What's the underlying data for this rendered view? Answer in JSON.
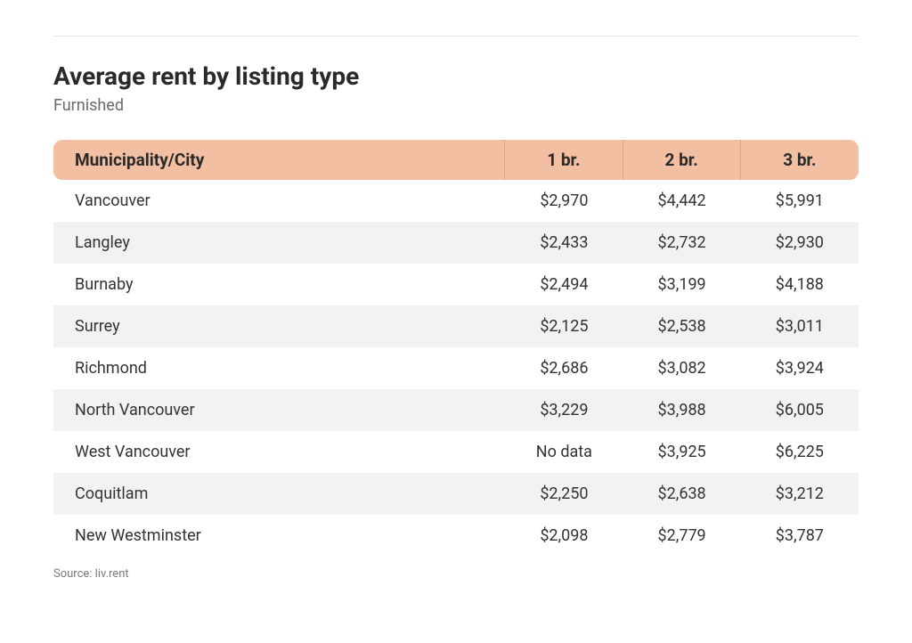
{
  "title": "Average rent by listing type",
  "subtitle": "Furnished",
  "source": "Source: liv.rent",
  "table": {
    "type": "table",
    "background_color": "#ffffff",
    "header_bg": "#f2bfa2",
    "header_border": "#dca98d",
    "stripe_color": "#f2f2f2",
    "text_color": "#333333",
    "title_fontsize": 28,
    "cell_fontsize": 18,
    "columns": [
      {
        "label": "Municipality/City",
        "align": "left",
        "width_pct": 56
      },
      {
        "label": "1 br.",
        "align": "center",
        "width_pct": 14.6
      },
      {
        "label": "2 br.",
        "align": "center",
        "width_pct": 14.6
      },
      {
        "label": "3 br.",
        "align": "center",
        "width_pct": 14.6
      }
    ],
    "rows": [
      [
        "Vancouver",
        "$2,970",
        "$4,442",
        "$5,991"
      ],
      [
        "Langley",
        "$2,433",
        "$2,732",
        "$2,930"
      ],
      [
        "Burnaby",
        "$2,494",
        "$3,199",
        "$4,188"
      ],
      [
        "Surrey",
        "$2,125",
        "$2,538",
        "$3,011"
      ],
      [
        "Richmond",
        "$2,686",
        "$3,082",
        "$3,924"
      ],
      [
        "North Vancouver",
        "$3,229",
        "$3,988",
        "$6,005"
      ],
      [
        "West Vancouver",
        "No data",
        "$3,925",
        "$6,225"
      ],
      [
        "Coquitlam",
        "$2,250",
        "$2,638",
        "$3,212"
      ],
      [
        "New Westminster",
        "$2,098",
        "$2,779",
        "$3,787"
      ]
    ]
  }
}
